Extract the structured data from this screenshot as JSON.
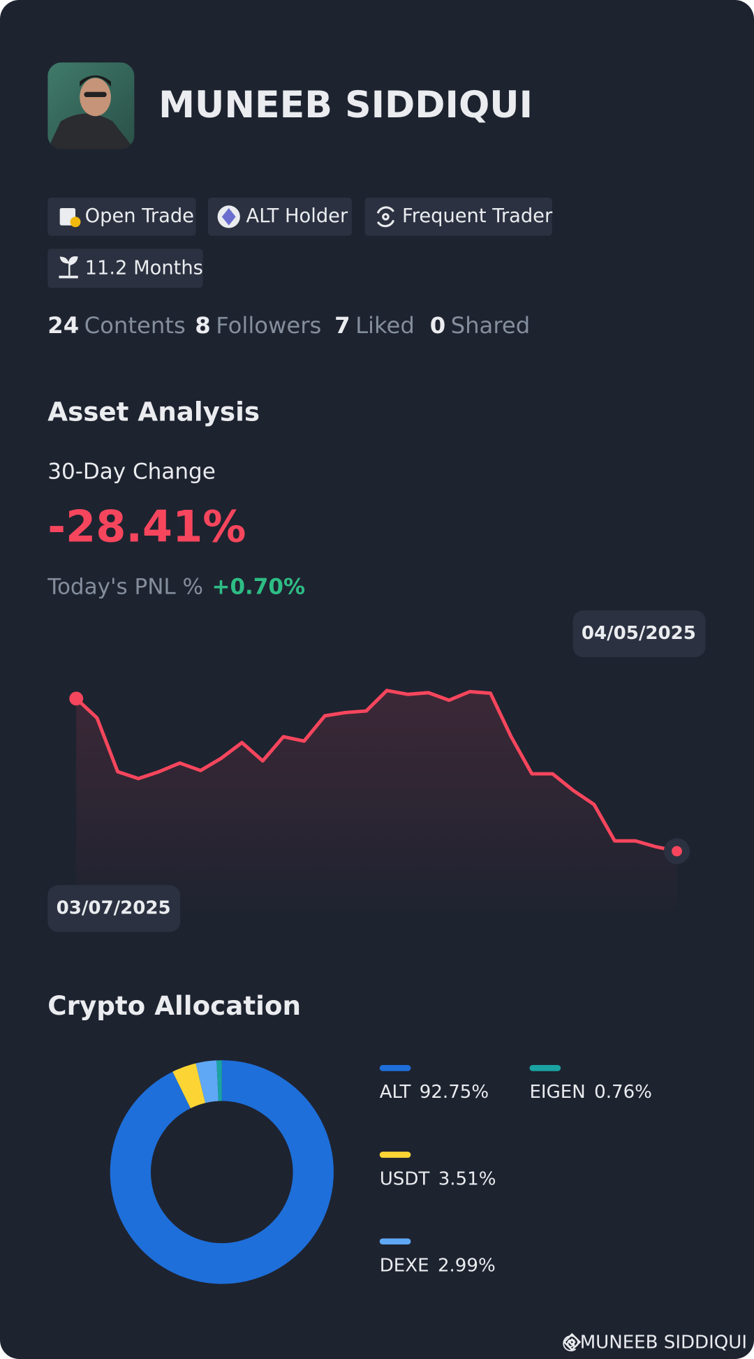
{
  "profile": {
    "name": "MUNEEB SIDDIQUI"
  },
  "badges": [
    "Open Trade",
    "ALT Holder",
    "Frequent Trader",
    "11.2 Months"
  ],
  "stats": [
    {
      "value": 24,
      "label": "Contents"
    },
    {
      "value": 8,
      "label": "Followers"
    },
    {
      "value": 7,
      "label": "Liked"
    },
    {
      "value": 0,
      "label": "Shared"
    }
  ],
  "asset_analysis": {
    "title": "Asset Analysis",
    "change_label": "30-Day Change",
    "change": "-28.41%",
    "pnl_label": "Today's PNL %",
    "pnl": "+0.70%"
  },
  "chart_data": [
    {
      "type": "line",
      "x": [
        "03/07/2025",
        null,
        null,
        null,
        null,
        null,
        null,
        null,
        null,
        null,
        null,
        null,
        null,
        null,
        null,
        null,
        null,
        null,
        null,
        null,
        null,
        null,
        null,
        null,
        null,
        null,
        null,
        null,
        null,
        "04/05/2025"
      ],
      "values": [
        0,
        -3.6,
        -13.6,
        -14.9,
        -13.6,
        -12.0,
        -13.4,
        -11.1,
        -8.2,
        -11.6,
        -7.1,
        -7.9,
        -3.2,
        -2.6,
        -2.3,
        1.5,
        0.8,
        1.1,
        -0.3,
        1.3,
        1.0,
        -7.1,
        -14.0,
        -14.0,
        -17.1,
        -19.7,
        -26.5,
        -26.5,
        -27.6,
        -28.41
      ],
      "color": "#f6465d",
      "ylim": [
        -37.8,
        7.4
      ]
    },
    {
      "type": "pie",
      "title": "Crypto Allocation",
      "categories": [
        "ALT",
        "USDT",
        "DEXE",
        "EIGEN"
      ],
      "values": [
        92.75,
        3.51,
        2.99,
        0.76
      ],
      "value_labels": [
        "92.75%",
        "3.51%",
        "2.99%",
        "0.76%"
      ],
      "colors": [
        "#1e6fd9",
        "#fcd535",
        "#5fa8f5",
        "#1aa3a3"
      ]
    }
  ],
  "footer": {
    "watermark": "@MUNEEB SIDDIQUI"
  }
}
